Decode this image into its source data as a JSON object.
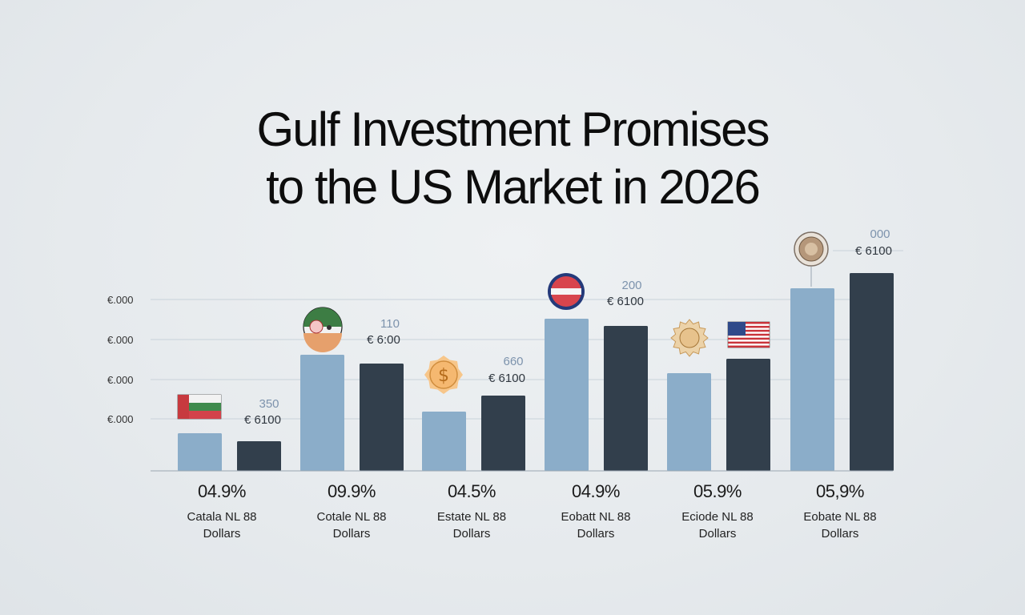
{
  "page": {
    "title_line1": "Gulf Investment Promises",
    "title_line2": "to the US Market in 2026"
  },
  "chart_data": {
    "type": "bar",
    "title": "Gulf Investment Promises to the US Market in 2026",
    "ytick_labels": [
      "€.000",
      "€.000",
      "€.000",
      "€.000"
    ],
    "series": [
      {
        "name": "",
        "color": "#8badc9",
        "values": [
          47,
          145,
          74,
          190,
          122,
          228
        ]
      },
      {
        "name": "",
        "color": "#323f4c",
        "values": [
          37,
          134,
          94,
          181,
          140,
          247
        ]
      }
    ],
    "categories": [
      {
        "pct": "04.9%",
        "line1": "Catala NL 88",
        "line2": "Dollars",
        "value_label": "350",
        "currency_label": "€ 6100",
        "icon": "flag-icon"
      },
      {
        "pct": "09.9%",
        "line1": "Cotale NL 88",
        "line2": "Dollars",
        "value_label": "110",
        "currency_label": "€ 6:00",
        "icon": "emblem-icon"
      },
      {
        "pct": "04.5%",
        "line1": "Estate NL 88",
        "line2": "Dollars",
        "value_label": "660",
        "currency_label": "€ 6100",
        "icon": "dollar-coin-icon"
      },
      {
        "pct": "04.9%",
        "line1": "Eobatt NL 88",
        "line2": "Dollars",
        "value_label": "200",
        "currency_label": "€ 6100",
        "icon": "emblem-icon"
      },
      {
        "pct": "05.9%",
        "line1": "Eciode NL 88",
        "line2": "Dollars",
        "value_label": "",
        "currency_label": "",
        "icon": "badge-icon"
      },
      {
        "pct": "05,9%",
        "line1": "Eobate NL 88",
        "line2": "Dollars",
        "value_label": "000",
        "currency_label": "€ 6100",
        "icon": "coin-icon"
      }
    ],
    "extra_icons": [
      "us-flag-icon"
    ],
    "ylim": [
      0,
      300
    ],
    "grid": true,
    "legend": "none"
  }
}
